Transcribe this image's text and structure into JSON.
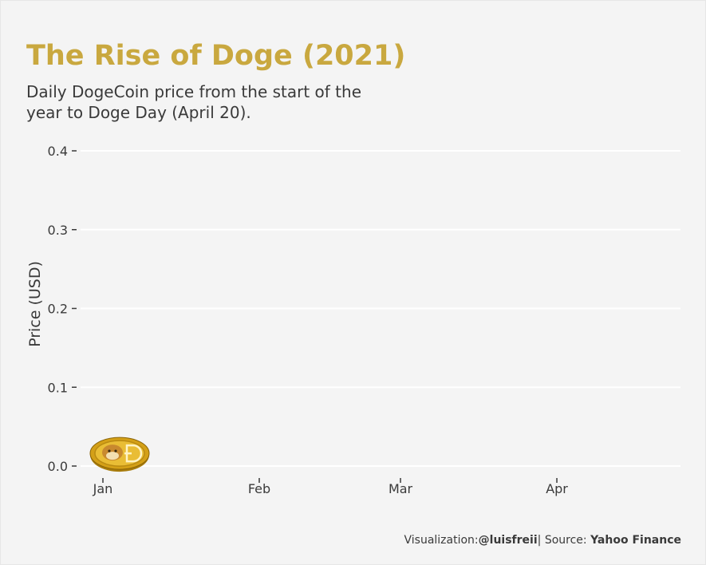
{
  "chart_data": {
    "type": "line",
    "title": "The Rise of Doge (2021)",
    "subtitle": "Daily DogeCoin price from the start of the year to Doge Day (April 20).",
    "ylabel": "Price (USD)",
    "xlabel": "",
    "yticks": [
      "0.0",
      "0.1",
      "0.2",
      "0.3",
      "0.4"
    ],
    "ytick_values": [
      0,
      0.1,
      0.2,
      0.3,
      0.4
    ],
    "ylim": [
      0,
      0.4
    ],
    "xticks": [
      "Jan",
      "Feb",
      "Mar",
      "Apr"
    ],
    "xtick_days": [
      0,
      31,
      59,
      90
    ],
    "xlim": [
      0,
      109
    ],
    "grid": "horizontal",
    "series": [
      {
        "x": [
          "2021-01-01"
        ],
        "y": [
          0.005
        ]
      }
    ],
    "marker": "dogecoin-coin"
  },
  "caption": {
    "viz_prefix": "Visualization:",
    "viz_author": "@luisfreii",
    "source_prefix": "| Source: ",
    "source_name": "Yahoo Finance"
  },
  "colors": {
    "title": "#c9a83f",
    "text": "#3a3a3a",
    "grid": "#ffffff",
    "background": "#f4f4f4",
    "coin": "#d4a017"
  }
}
